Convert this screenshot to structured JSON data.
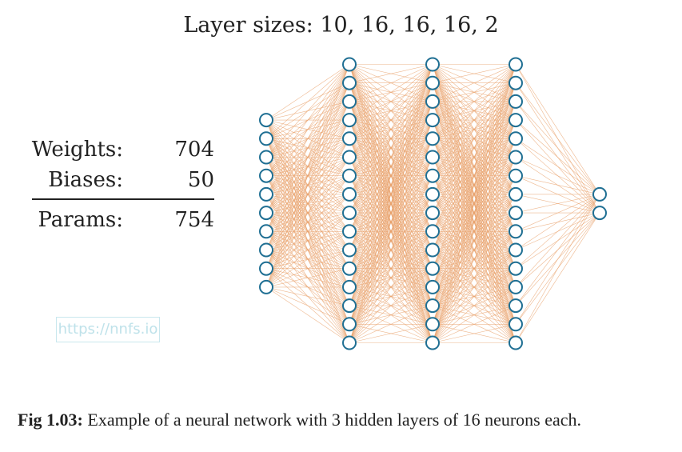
{
  "title": "Layer sizes: 10, 16, 16, 16, 2",
  "stats": {
    "weights_label": "Weights:",
    "weights_value": "704",
    "biases_label": "Biases:",
    "biases_value": "50",
    "params_label": "Params:",
    "params_value": "754"
  },
  "watermark": "https://nnfs.io",
  "caption": {
    "prefix": "Fig 1.03:",
    "text": " Example of a neural network with 3 hidden layers of 16 neurons each."
  },
  "network": {
    "layer_sizes": [
      10,
      16,
      16,
      16,
      2
    ],
    "node_color": "#1f6f93",
    "edge_color": "#e8a06a"
  }
}
